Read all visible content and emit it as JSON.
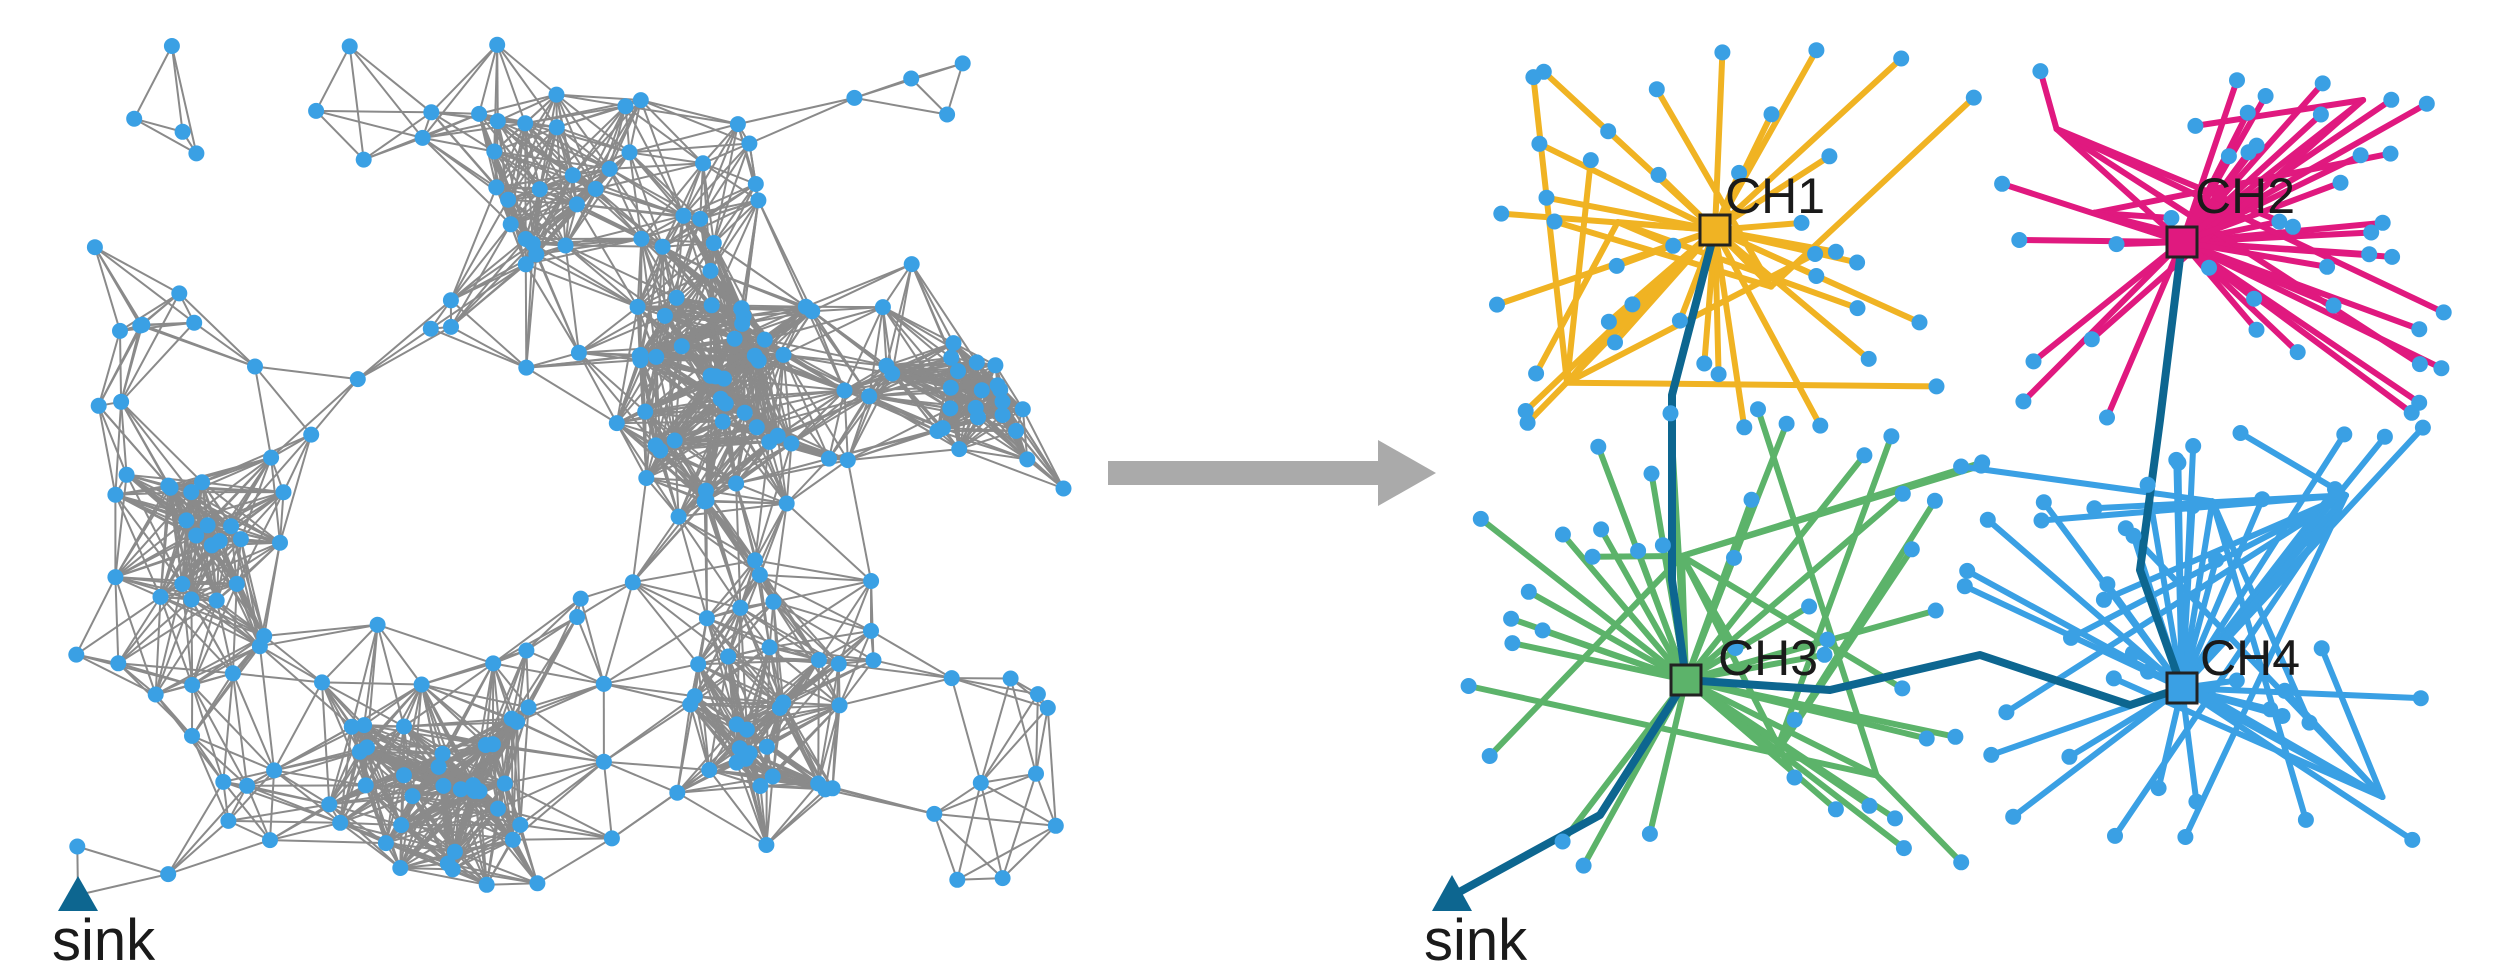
{
  "left_panel": {
    "sink_label": "sink"
  },
  "right_panel": {
    "sink_label": "sink",
    "cluster_heads": [
      {
        "id": "ch1",
        "label": "CH1",
        "color": "#f0b323"
      },
      {
        "id": "ch2",
        "label": "CH2",
        "color": "#e0197f"
      },
      {
        "id": "ch3",
        "label": "CH3",
        "color": "#5cb36a"
      },
      {
        "id": "ch4",
        "label": "CH4",
        "color": "#3aa0e4"
      }
    ]
  },
  "colors": {
    "node": "#3aa0e4",
    "mesh_edge": "#8a8a8a",
    "backbone": "#0d6690",
    "arrow": "#aaaaaa",
    "sink": "#0d6690"
  }
}
